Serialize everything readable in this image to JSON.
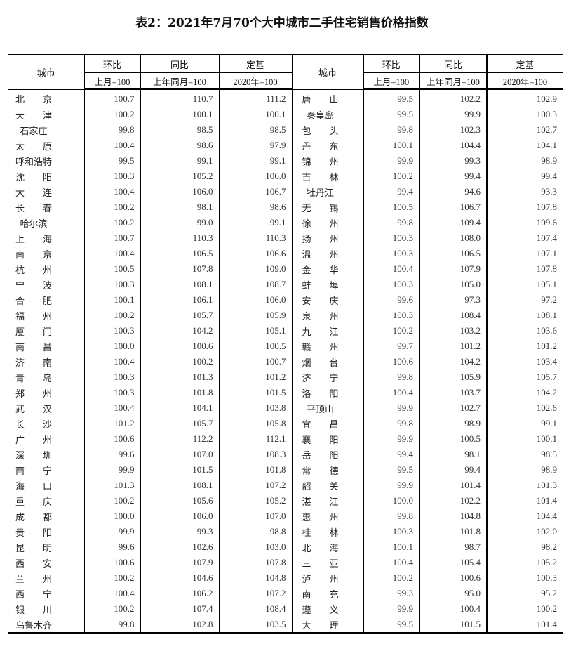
{
  "title": "表2：2021年7月70个大中城市二手住宅销售价格指数",
  "headers": {
    "city": "城市",
    "mom": "环比",
    "yoy": "同比",
    "base": "定基",
    "mom_sub": "上月=100",
    "yoy_sub": "上年同月=100",
    "base_sub": "2020年=100"
  },
  "left_rows": [
    [
      "北京",
      "100.7",
      "110.7",
      "111.2"
    ],
    [
      "天津",
      "100.2",
      "100.1",
      "100.1"
    ],
    [
      "石家庄",
      "99.8",
      "98.5",
      "98.5"
    ],
    [
      "太原",
      "100.4",
      "98.6",
      "97.9"
    ],
    [
      "呼和浩特",
      "99.5",
      "99.1",
      "99.1"
    ],
    [
      "沈阳",
      "100.3",
      "105.2",
      "106.0"
    ],
    [
      "大连",
      "100.4",
      "106.0",
      "106.7"
    ],
    [
      "长春",
      "100.2",
      "98.1",
      "98.6"
    ],
    [
      "哈尔滨",
      "100.2",
      "99.0",
      "99.1"
    ],
    [
      "上海",
      "100.7",
      "110.3",
      "110.3"
    ],
    [
      "南京",
      "100.4",
      "106.5",
      "106.6"
    ],
    [
      "杭州",
      "100.5",
      "107.8",
      "109.0"
    ],
    [
      "宁波",
      "100.3",
      "108.1",
      "108.7"
    ],
    [
      "合肥",
      "100.1",
      "106.1",
      "106.0"
    ],
    [
      "福州",
      "100.2",
      "105.7",
      "105.9"
    ],
    [
      "厦门",
      "100.3",
      "104.2",
      "105.1"
    ],
    [
      "南昌",
      "100.0",
      "100.6",
      "100.5"
    ],
    [
      "济南",
      "100.4",
      "100.2",
      "100.7"
    ],
    [
      "青岛",
      "100.3",
      "101.3",
      "101.2"
    ],
    [
      "郑州",
      "100.3",
      "101.8",
      "101.5"
    ],
    [
      "武汉",
      "100.4",
      "104.1",
      "103.8"
    ],
    [
      "长沙",
      "101.2",
      "105.7",
      "105.8"
    ],
    [
      "广州",
      "100.6",
      "112.2",
      "112.1"
    ],
    [
      "深圳",
      "99.6",
      "107.0",
      "108.3"
    ],
    [
      "南宁",
      "99.9",
      "101.5",
      "101.8"
    ],
    [
      "海口",
      "101.3",
      "108.1",
      "107.2"
    ],
    [
      "重庆",
      "100.2",
      "105.6",
      "105.2"
    ],
    [
      "成都",
      "100.0",
      "106.0",
      "107.0"
    ],
    [
      "贵阳",
      "99.9",
      "99.3",
      "98.8"
    ],
    [
      "昆明",
      "99.6",
      "102.6",
      "103.0"
    ],
    [
      "西安",
      "100.6",
      "107.9",
      "107.8"
    ],
    [
      "兰州",
      "100.2",
      "104.6",
      "104.8"
    ],
    [
      "西宁",
      "100.4",
      "106.2",
      "107.2"
    ],
    [
      "银川",
      "100.2",
      "107.4",
      "108.4"
    ],
    [
      "乌鲁木齐",
      "99.8",
      "102.8",
      "103.5"
    ]
  ],
  "right_rows": [
    [
      "唐山",
      "99.5",
      "102.2",
      "102.9"
    ],
    [
      "秦皇岛",
      "99.5",
      "99.9",
      "100.3"
    ],
    [
      "包头",
      "99.8",
      "102.3",
      "102.7"
    ],
    [
      "丹东",
      "100.1",
      "104.4",
      "104.1"
    ],
    [
      "锦州",
      "99.9",
      "99.3",
      "98.9"
    ],
    [
      "吉林",
      "100.2",
      "99.4",
      "99.4"
    ],
    [
      "牡丹江",
      "99.4",
      "94.6",
      "93.3"
    ],
    [
      "无锡",
      "100.5",
      "106.7",
      "107.8"
    ],
    [
      "徐州",
      "99.8",
      "109.4",
      "109.6"
    ],
    [
      "扬州",
      "100.3",
      "108.0",
      "107.4"
    ],
    [
      "温州",
      "100.3",
      "106.5",
      "107.1"
    ],
    [
      "金华",
      "100.4",
      "107.9",
      "107.8"
    ],
    [
      "蚌埠",
      "100.3",
      "105.0",
      "105.1"
    ],
    [
      "安庆",
      "99.6",
      "97.3",
      "97.2"
    ],
    [
      "泉州",
      "100.3",
      "108.4",
      "108.1"
    ],
    [
      "九江",
      "100.2",
      "103.2",
      "103.6"
    ],
    [
      "赣州",
      "99.7",
      "101.2",
      "101.2"
    ],
    [
      "烟台",
      "100.6",
      "104.2",
      "103.4"
    ],
    [
      "济宁",
      "99.8",
      "105.9",
      "105.7"
    ],
    [
      "洛阳",
      "100.4",
      "103.7",
      "104.2"
    ],
    [
      "平顶山",
      "99.9",
      "102.7",
      "102.6"
    ],
    [
      "宜昌",
      "99.8",
      "98.9",
      "99.1"
    ],
    [
      "襄阳",
      "99.9",
      "100.5",
      "100.1"
    ],
    [
      "岳阳",
      "99.4",
      "98.1",
      "98.5"
    ],
    [
      "常德",
      "99.5",
      "99.4",
      "98.9"
    ],
    [
      "韶关",
      "99.9",
      "101.4",
      "101.3"
    ],
    [
      "湛江",
      "100.0",
      "102.2",
      "101.4"
    ],
    [
      "惠州",
      "99.8",
      "104.8",
      "104.4"
    ],
    [
      "桂林",
      "100.3",
      "101.8",
      "102.0"
    ],
    [
      "北海",
      "100.1",
      "98.7",
      "98.2"
    ],
    [
      "三亚",
      "100.4",
      "105.4",
      "105.2"
    ],
    [
      "泸州",
      "100.2",
      "100.6",
      "100.3"
    ],
    [
      "南充",
      "99.3",
      "95.0",
      "95.2"
    ],
    [
      "遵义",
      "99.9",
      "100.4",
      "100.2"
    ],
    [
      "大理",
      "99.5",
      "101.5",
      "101.4"
    ]
  ]
}
